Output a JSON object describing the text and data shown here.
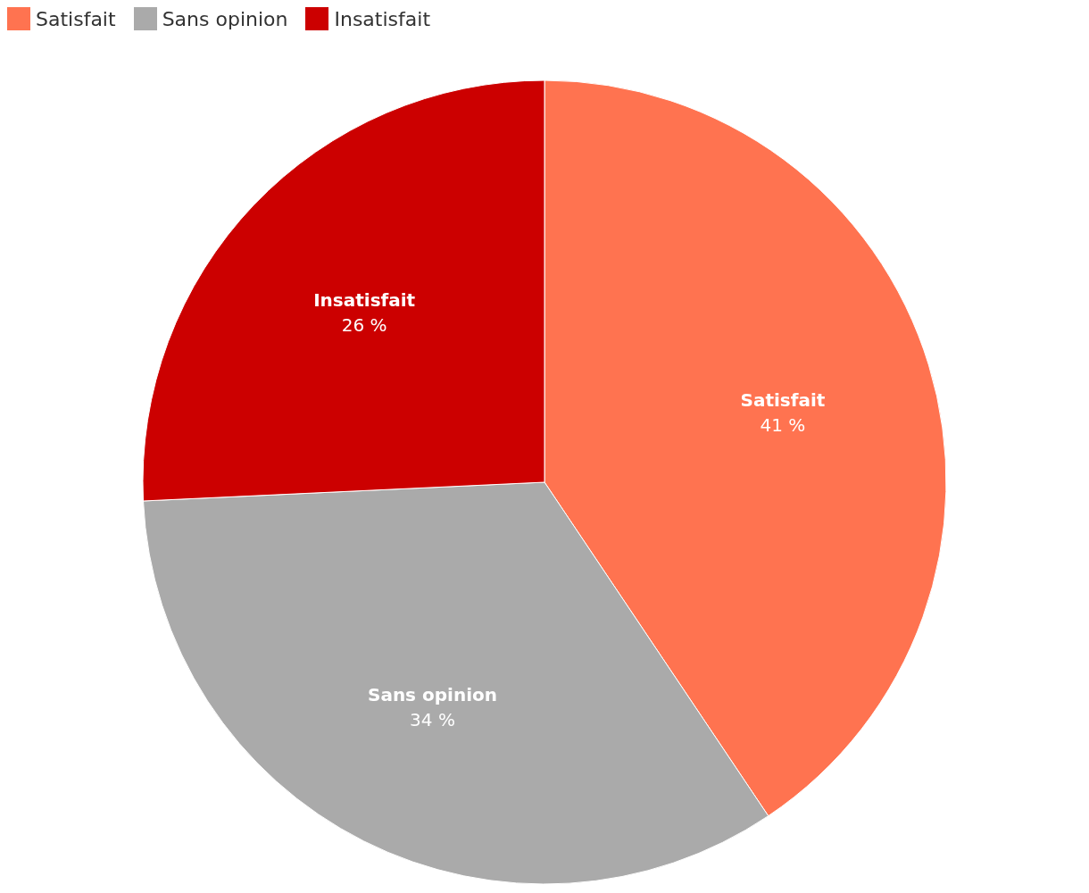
{
  "chart_data": {
    "type": "pie",
    "categories": [
      "Satisfait",
      "Sans opinion",
      "Insatisfait"
    ],
    "values": [
      41,
      34,
      26
    ],
    "colors": [
      "#ff7350",
      "#aaaaaa",
      "#cc0000"
    ],
    "value_labels": [
      "41 %",
      "34 %",
      "26 %"
    ],
    "legend": "top left"
  }
}
